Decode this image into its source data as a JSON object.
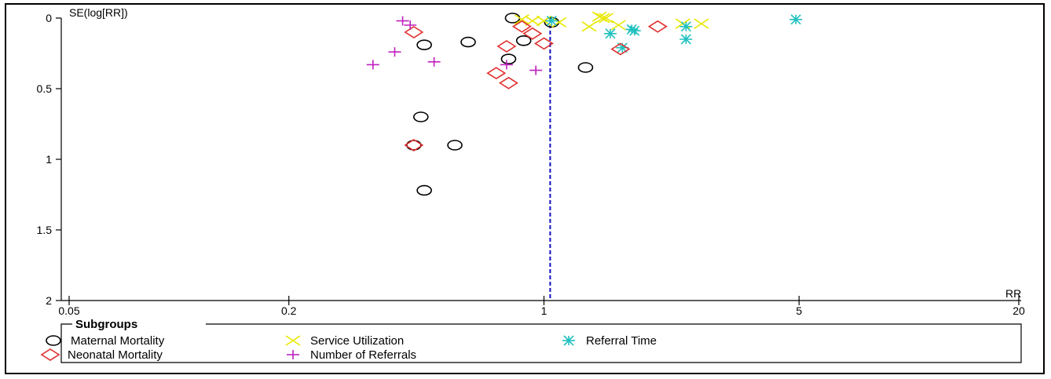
{
  "chart_data": {
    "type": "scatter",
    "title": "",
    "xlabel": "RR",
    "ylabel": "SE(log[RR])",
    "x_scale": "log",
    "xlim": [
      0.05,
      20
    ],
    "ylim": [
      2,
      0
    ],
    "x_ticks": [
      "0.05",
      "0.2",
      "1",
      "5",
      "20"
    ],
    "y_ticks": [
      "0",
      "0.5",
      "1",
      "1.5",
      "2"
    ],
    "pooled_estimate_RR": 1.04,
    "pooled_line_color": "#1010c0",
    "grid": false,
    "legend": {
      "title": "Subgroups",
      "placement": "bottom"
    },
    "series": [
      {
        "name": "Maternal Mortality",
        "marker": "circle",
        "color": "#000000",
        "points": [
          {
            "x": 0.82,
            "y": 0.0
          },
          {
            "x": 1.05,
            "y": 0.03
          },
          {
            "x": 0.47,
            "y": 0.19
          },
          {
            "x": 0.62,
            "y": 0.17
          },
          {
            "x": 0.88,
            "y": 0.16
          },
          {
            "x": 0.8,
            "y": 0.29
          },
          {
            "x": 1.3,
            "y": 0.35
          },
          {
            "x": 0.46,
            "y": 0.7
          },
          {
            "x": 0.57,
            "y": 0.9
          },
          {
            "x": 0.47,
            "y": 1.22
          },
          {
            "x": 0.44,
            "y": 0.9
          }
        ]
      },
      {
        "name": "Service Utilization",
        "marker": "x",
        "color": "#e8e800",
        "points": [
          {
            "x": 0.87,
            "y": 0.01
          },
          {
            "x": 0.93,
            "y": 0.02
          },
          {
            "x": 1.0,
            "y": 0.02
          },
          {
            "x": 1.1,
            "y": 0.03
          },
          {
            "x": 1.45,
            "y": 0.0
          },
          {
            "x": 1.42,
            "y": -0.01
          },
          {
            "x": 1.48,
            "y": 0.0
          },
          {
            "x": 1.33,
            "y": 0.06
          },
          {
            "x": 2.7,
            "y": 0.04
          },
          {
            "x": 2.4,
            "y": 0.04
          },
          {
            "x": 1.6,
            "y": 0.05
          }
        ]
      },
      {
        "name": "Referral Time",
        "marker": "asterisk",
        "color": "#20c0c0",
        "points": [
          {
            "x": 1.05,
            "y": 0.02
          },
          {
            "x": 1.52,
            "y": 0.11
          },
          {
            "x": 1.77,
            "y": 0.09
          },
          {
            "x": 1.74,
            "y": 0.08
          },
          {
            "x": 2.45,
            "y": 0.06
          },
          {
            "x": 2.45,
            "y": 0.15
          },
          {
            "x": 1.64,
            "y": 0.21
          },
          {
            "x": 4.9,
            "y": 0.01
          }
        ]
      },
      {
        "name": "Neonatal Mortality",
        "marker": "diamond",
        "color": "#e03030",
        "points": [
          {
            "x": 0.44,
            "y": 0.1
          },
          {
            "x": 0.87,
            "y": 0.06
          },
          {
            "x": 0.93,
            "y": 0.11
          },
          {
            "x": 1.0,
            "y": 0.18
          },
          {
            "x": 0.79,
            "y": 0.2
          },
          {
            "x": 2.05,
            "y": 0.06
          },
          {
            "x": 1.62,
            "y": 0.22
          },
          {
            "x": 0.74,
            "y": 0.39
          },
          {
            "x": 0.8,
            "y": 0.46
          },
          {
            "x": 0.44,
            "y": 0.9
          }
        ]
      },
      {
        "name": "Number of Referrals",
        "marker": "plus",
        "color": "#c020c0",
        "points": [
          {
            "x": 0.41,
            "y": 0.02
          },
          {
            "x": 0.43,
            "y": 0.05
          },
          {
            "x": 0.39,
            "y": 0.24
          },
          {
            "x": 0.34,
            "y": 0.33
          },
          {
            "x": 0.5,
            "y": 0.31
          },
          {
            "x": 0.79,
            "y": 0.33
          },
          {
            "x": 0.95,
            "y": 0.37
          }
        ]
      }
    ]
  }
}
